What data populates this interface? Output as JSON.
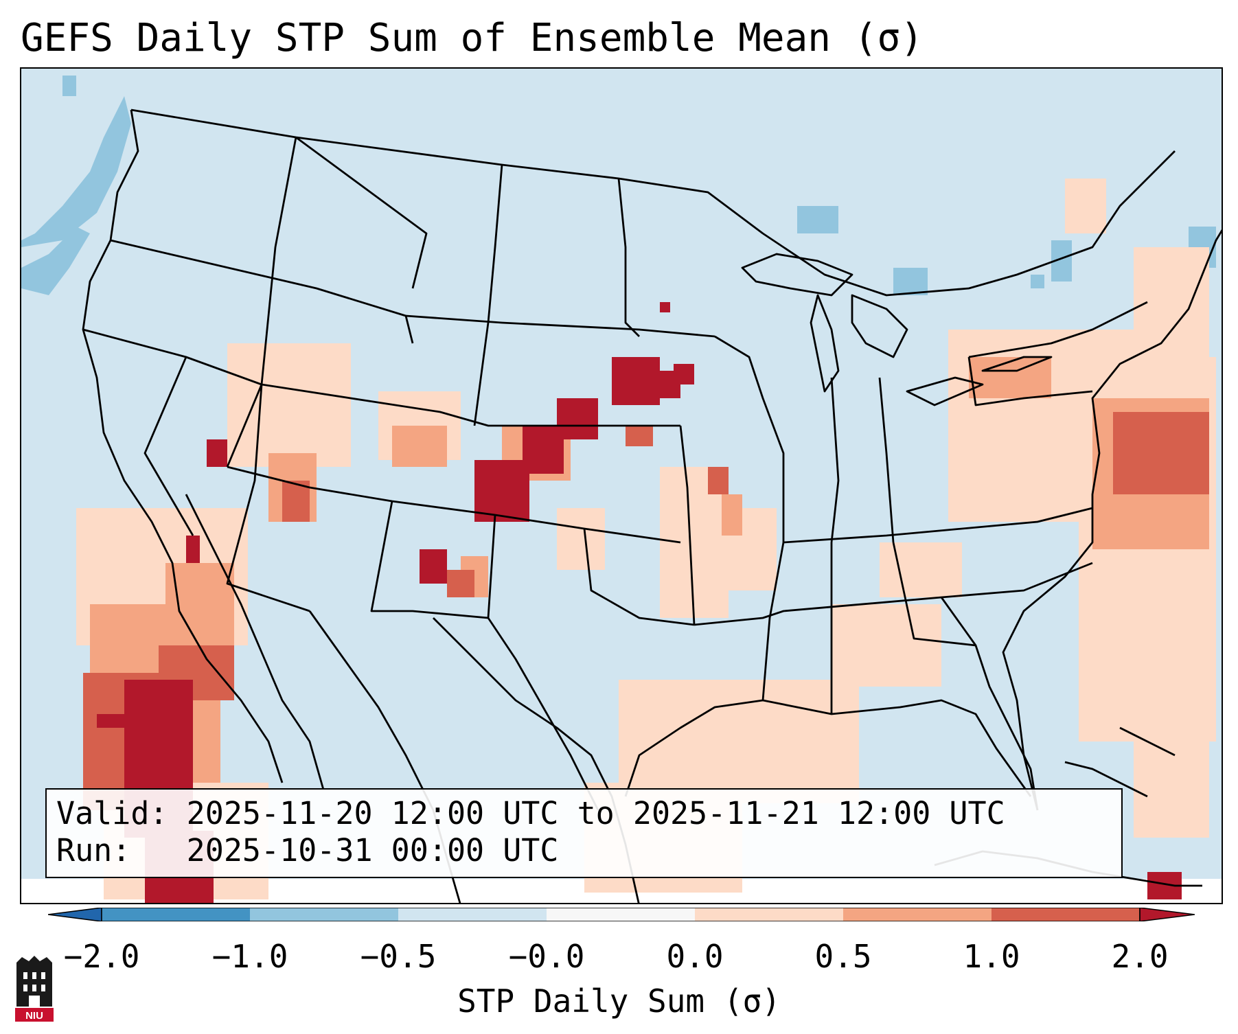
{
  "title": "GEFS Daily STP Sum of Ensemble Mean (σ)",
  "info": {
    "valid_line": "Valid: 2025-11-20 12:00 UTC to 2025-11-21 12:00 UTC",
    "run_line": "Run:   2025-10-31 00:00 UTC"
  },
  "colorbar": {
    "label": "STP Daily Sum (σ)",
    "tick_labels": [
      "−2.0",
      "−1.0",
      "−0.5",
      "−0.0",
      "0.0",
      "0.5",
      "1.0",
      "2.0"
    ],
    "colors": [
      "#4393c3",
      "#92c5de",
      "#d1e5f0",
      "#f7f7f7",
      "#fddbc7",
      "#f4a582",
      "#d6604d",
      "#b2182b"
    ],
    "under_color": "#2166ac",
    "over_color": "#b2182b"
  },
  "map": {
    "background_color": "#d1e5f0",
    "border_color": "#000000"
  },
  "logo": {
    "text": "NIU",
    "color": "#c8102e"
  }
}
